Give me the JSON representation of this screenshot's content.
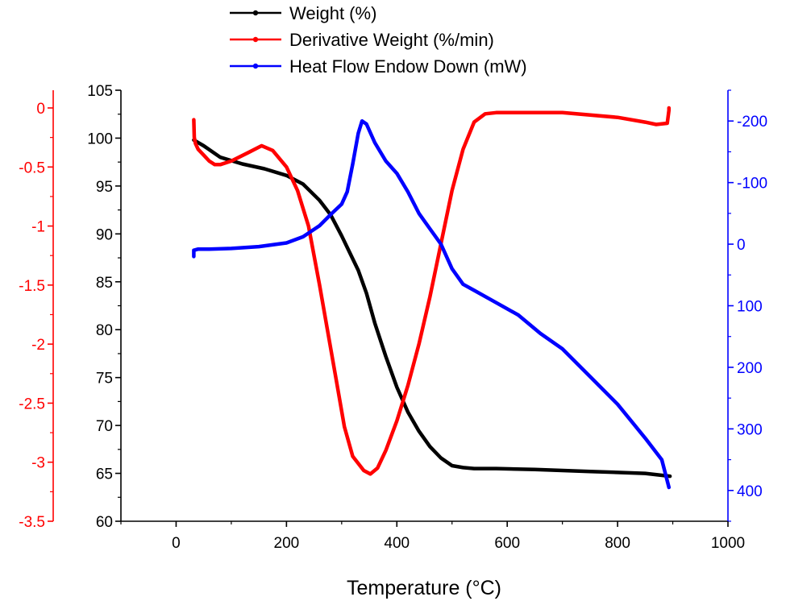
{
  "chart_data": {
    "type": "line",
    "xlabel": "Temperature (°C)",
    "xlim": [
      -100,
      1000
    ],
    "xticks": [
      0,
      200,
      400,
      600,
      800,
      1000
    ],
    "axes": {
      "left": {
        "label": "",
        "lim": [
          60,
          105
        ],
        "ticks": [
          60,
          65,
          70,
          75,
          80,
          85,
          90,
          95,
          100,
          105
        ],
        "color": "#000000"
      },
      "left_outer": {
        "label": "",
        "lim": [
          -3.5,
          0.15
        ],
        "ticks": [
          -3.5,
          -3.0,
          -2.5,
          -2.0,
          -1.5,
          -1.0,
          -0.5,
          0.0
        ],
        "color": "#ff0000"
      },
      "right": {
        "label": "",
        "lim": [
          450,
          -250
        ],
        "ticks": [
          -200,
          -100,
          0,
          100,
          200,
          300,
          400
        ],
        "color": "#0000ff",
        "inverted": true
      }
    },
    "legend": {
      "placement": "top-center"
    },
    "series": [
      {
        "name": "Weight (%)",
        "color": "#000000",
        "axis": "left",
        "x": [
          32,
          50,
          80,
          120,
          160,
          200,
          230,
          260,
          280,
          300,
          315,
          330,
          345,
          360,
          380,
          400,
          420,
          440,
          460,
          480,
          500,
          520,
          540,
          580,
          650,
          750,
          850,
          895
        ],
        "y": [
          99.8,
          99.2,
          98.0,
          97.3,
          96.8,
          96.1,
          95.2,
          93.5,
          92.0,
          89.8,
          88.0,
          86.2,
          83.8,
          80.7,
          77.2,
          74.0,
          71.4,
          69.4,
          67.8,
          66.6,
          65.8,
          65.6,
          65.5,
          65.5,
          65.4,
          65.2,
          65.0,
          64.7
        ]
      },
      {
        "name": "Derivative Weight (%/min)",
        "color": "#ff0000",
        "axis": "left_outer",
        "x": [
          32,
          33,
          35,
          40,
          50,
          60,
          70,
          80,
          100,
          130,
          155,
          175,
          200,
          220,
          240,
          260,
          275,
          290,
          305,
          320,
          340,
          352,
          365,
          380,
          400,
          420,
          440,
          460,
          480,
          500,
          520,
          540,
          560,
          580,
          600,
          700,
          800,
          850,
          870,
          890,
          893,
          893
        ],
        "y": [
          -0.1,
          -0.25,
          -0.3,
          -0.35,
          -0.4,
          -0.45,
          -0.48,
          -0.48,
          -0.45,
          -0.38,
          -0.32,
          -0.36,
          -0.5,
          -0.7,
          -1.0,
          -1.5,
          -1.9,
          -2.3,
          -2.7,
          -2.95,
          -3.07,
          -3.1,
          -3.05,
          -2.9,
          -2.65,
          -2.35,
          -2.0,
          -1.6,
          -1.15,
          -0.7,
          -0.35,
          -0.12,
          -0.05,
          -0.04,
          -0.04,
          -0.04,
          -0.08,
          -0.12,
          -0.14,
          -0.13,
          -0.02,
          0.0
        ]
      },
      {
        "name": "Heat Flow Endow Down (mW)",
        "color": "#0000ff",
        "axis": "right",
        "x": [
          32,
          32,
          40,
          60,
          100,
          150,
          200,
          230,
          260,
          280,
          300,
          310,
          320,
          330,
          337,
          345,
          360,
          380,
          400,
          420,
          440,
          460,
          480,
          500,
          520,
          540,
          580,
          620,
          660,
          700,
          750,
          800,
          850,
          880,
          893
        ],
        "y": [
          20,
          10,
          8,
          8,
          7,
          4,
          -2,
          -12,
          -30,
          -48,
          -65,
          -85,
          -130,
          -180,
          -200,
          -195,
          -165,
          -135,
          -115,
          -85,
          -50,
          -25,
          0,
          40,
          65,
          75,
          95,
          115,
          145,
          170,
          215,
          260,
          315,
          350,
          395
        ]
      }
    ]
  }
}
